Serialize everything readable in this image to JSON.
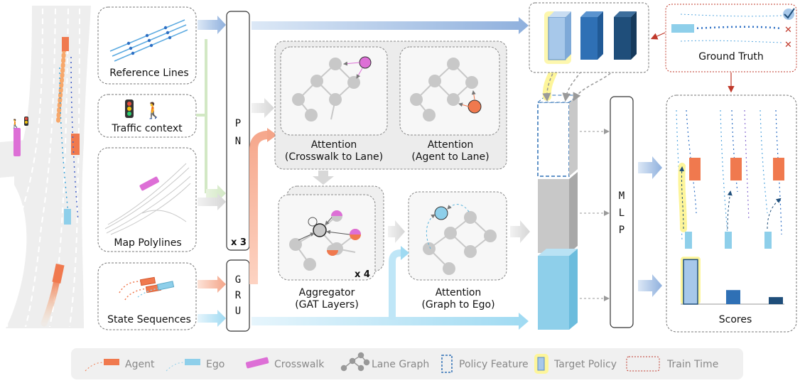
{
  "inputs": {
    "reference_lines": "Reference Lines",
    "traffic_context": "Traffic context",
    "map_polylines": "Map Polylines",
    "state_sequences": "State Sequences"
  },
  "encoders": {
    "pn_letters": [
      "P",
      "N"
    ],
    "pn_repeat": "x 3",
    "gru_letters": [
      "G",
      "R",
      "U"
    ],
    "mlp_letters": [
      "M",
      "L",
      "P"
    ]
  },
  "attention_blocks": {
    "crosswalk_to_lane": [
      "Attention",
      "(Crosswalk to Lane)"
    ],
    "agent_to_lane": [
      "Attention",
      "(Agent to Lane)"
    ],
    "graph_to_ego": [
      "Attention",
      "(Graph to Ego)"
    ],
    "aggregator": [
      "Aggregator",
      "(GAT Layers)"
    ],
    "aggregator_repeat": "x 4"
  },
  "outputs": {
    "ground_truth": "Ground Truth",
    "scores": "Scores",
    "score_values": [
      0.95,
      0.3,
      0.15
    ]
  },
  "legend": [
    {
      "key": "agent",
      "label": "Agent"
    },
    {
      "key": "ego",
      "label": "Ego"
    },
    {
      "key": "crosswalk",
      "label": "Crosswalk"
    },
    {
      "key": "lane_graph",
      "label": "Lane Graph"
    },
    {
      "key": "policy_feature",
      "label": "Policy Feature"
    },
    {
      "key": "target_policy",
      "label": "Target Policy"
    },
    {
      "key": "train_time",
      "label": "Train Time"
    }
  ],
  "colors": {
    "agent": "#f0794e",
    "ego": "#8ecfea",
    "crosswalk": "#dd6fd6",
    "policy_light": "#a7c8ea",
    "policy_mid": "#2f70b5",
    "policy_dark": "#1f4e7a",
    "highlight": "#fdf59a",
    "train_time": "#c0392b",
    "node_gray": "#c8c8c8"
  }
}
